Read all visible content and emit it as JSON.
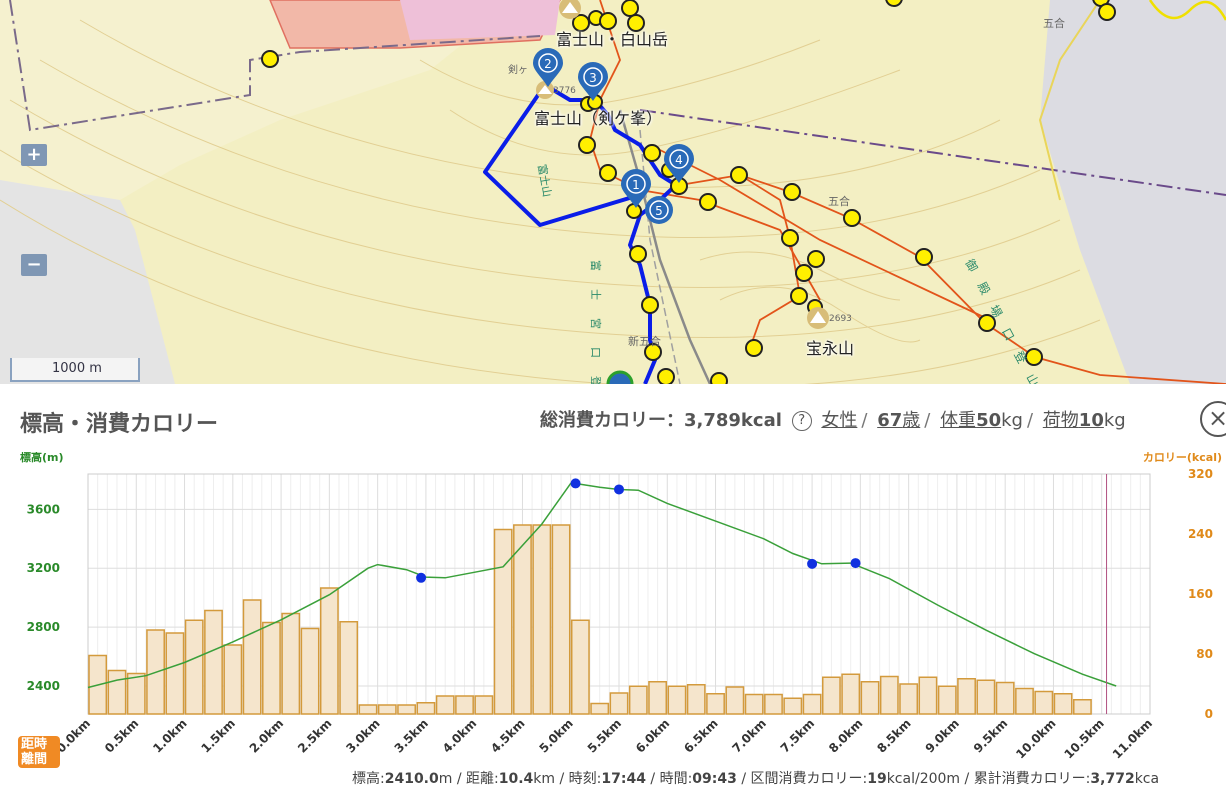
{
  "map": {
    "labels": {
      "summit_shrine": "富士山・白山岳",
      "kengamine": "富士山（剣ケ峯）",
      "hoeizan": "宝永山",
      "kengamine_small": "剣ヶ",
      "elev_3776": "3776",
      "elev_2693": "2693",
      "gogome_a": "五合",
      "gogome_b": "五合",
      "road_fuji": "富士山",
      "road_gotemba": "御殿場口登山道",
      "road_shingo": "新五合",
      "road_fujinomiya": "富士宮口登山道"
    },
    "zoom_in": "+",
    "zoom_out": "−",
    "scale": "1000 m",
    "colors": {
      "route": "#0a1de8",
      "waypoint": "#ffef00",
      "marker": "#2a6ab8",
      "trail": "#e2541a"
    },
    "markers": [
      {
        "label": "1"
      },
      {
        "label": "2"
      },
      {
        "label": "3"
      },
      {
        "label": "4"
      },
      {
        "label": "5"
      }
    ]
  },
  "profile": {
    "title": "標高・消費カロリー",
    "total_label": "総消費カロリー：",
    "total_value": "3,789kcal",
    "help": "?",
    "gender": "女性",
    "age_value": "67",
    "age_unit": "歳",
    "weight_label": "体重",
    "weight_value": "50",
    "weight_unit": "kg",
    "pack_label": "荷物",
    "pack_value": "10",
    "pack_unit": "kg",
    "close": "×",
    "toggle_top": "距時",
    "toggle_bottom": "離間",
    "footer": {
      "elev_label": "標高:",
      "elev_value": "2410.0",
      "elev_unit": "m",
      "dist_label": "距離:",
      "dist_value": "10.4",
      "dist_unit": "km",
      "time_label": "時刻:",
      "time_value": "17:44",
      "dur_label": "時間:",
      "dur_value": "09:43",
      "seg_label": "区間消費カロリー:",
      "seg_value": "19",
      "seg_unit": "kcal/200m",
      "cum_label": "累計消費カロリー:",
      "cum_value": "3,772",
      "cum_unit": "kca"
    }
  },
  "chart_data": {
    "type": "bar+line",
    "ylabel": "標高(m)",
    "y2label": "カロリー(kcal)",
    "ylim": [
      2210,
      3840
    ],
    "y2lim": [
      0,
      320
    ],
    "xlim": [
      0,
      11
    ],
    "yticks": [
      2400,
      2800,
      3200,
      3600
    ],
    "y2ticks": [
      0,
      80,
      160,
      240,
      320
    ],
    "xticks": [
      "0.0km",
      "0.5km",
      "1.0km",
      "1.5km",
      "2.0km",
      "2.5km",
      "3.0km",
      "3.5km",
      "4.0km",
      "4.5km",
      "5.0km",
      "5.5km",
      "6.0km",
      "6.5km",
      "7.0km",
      "7.5km",
      "8.0km",
      "8.5km",
      "9.0km",
      "9.5km",
      "10.0km",
      "10.5km",
      "11.0km"
    ],
    "calorie_bar_width_km": 0.2,
    "calorie_bars": [
      78,
      58,
      54,
      112,
      108,
      125,
      138,
      92,
      152,
      122,
      134,
      114,
      168,
      123,
      12,
      12,
      12,
      15,
      24,
      24,
      24,
      246,
      252,
      252,
      252,
      125,
      14,
      28,
      37,
      43,
      37,
      39,
      27,
      36,
      26,
      26,
      21,
      26,
      49,
      53,
      43,
      50,
      40,
      49,
      37,
      47,
      45,
      42,
      34,
      30,
      27,
      19
    ],
    "elevation_line": [
      [
        0,
        2390
      ],
      [
        0.3,
        2440
      ],
      [
        0.6,
        2470
      ],
      [
        1.0,
        2560
      ],
      [
        1.5,
        2700
      ],
      [
        2.0,
        2850
      ],
      [
        2.5,
        3020
      ],
      [
        2.9,
        3200
      ],
      [
        3.0,
        3225
      ],
      [
        3.3,
        3190
      ],
      [
        3.5,
        3140
      ],
      [
        3.7,
        3135
      ],
      [
        4.3,
        3210
      ],
      [
        4.7,
        3500
      ],
      [
        5.0,
        3776
      ],
      [
        5.1,
        3770
      ],
      [
        5.3,
        3750
      ],
      [
        5.5,
        3735
      ],
      [
        5.7,
        3730
      ],
      [
        6.0,
        3640
      ],
      [
        6.5,
        3520
      ],
      [
        7.0,
        3400
      ],
      [
        7.3,
        3300
      ],
      [
        7.6,
        3230
      ],
      [
        7.9,
        3235
      ],
      [
        8.3,
        3130
      ],
      [
        8.8,
        2950
      ],
      [
        9.3,
        2780
      ],
      [
        9.8,
        2620
      ],
      [
        10.3,
        2480
      ],
      [
        10.65,
        2400
      ]
    ],
    "waypoints": [
      [
        3.45,
        3135
      ],
      [
        5.05,
        3776
      ],
      [
        5.5,
        3735
      ],
      [
        7.5,
        3230
      ],
      [
        7.95,
        3235
      ]
    ],
    "cursor_km": 10.55,
    "colors": {
      "bar_fill": "#f5e5cc",
      "bar_stroke": "#d39a3c",
      "line": "#3aa03a",
      "waypoint": "#1030e0",
      "y_axis": "#2a8a2a",
      "y2_axis": "#e08a1a",
      "cursor": "#b05080"
    }
  }
}
